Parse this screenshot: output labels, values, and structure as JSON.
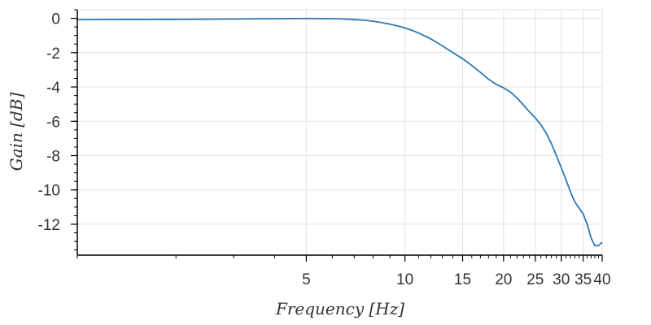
{
  "chart_data": {
    "type": "line",
    "title": "",
    "xlabel": "Frequency [Hz]",
    "ylabel": "Gain [dB]",
    "x_scale": "log",
    "xlim": [
      1,
      40
    ],
    "ylim": [
      -13.8,
      0.5
    ],
    "grid": true,
    "legend": "none",
    "x_ticks": [
      5,
      10,
      15,
      20,
      25,
      30,
      35,
      40
    ],
    "x_tick_labels": [
      "5",
      "10",
      "15",
      "20",
      "25",
      "30",
      "35",
      "40"
    ],
    "y_ticks": [
      0,
      -2,
      -4,
      -6,
      -8,
      -10,
      -12
    ],
    "y_tick_labels": [
      "0",
      "-2",
      "-4",
      "-6",
      "-8",
      "-10",
      "-12"
    ],
    "series": [
      {
        "color": "#2e78b4",
        "x": [
          1,
          2,
          3,
          4,
          5,
          6,
          6.5,
          7,
          7.5,
          8,
          8.5,
          9,
          9.5,
          10,
          10.5,
          11,
          12,
          13,
          14,
          15,
          16,
          17,
          18,
          19,
          20,
          21,
          22,
          23,
          24,
          25,
          26,
          27,
          28,
          29,
          30,
          31,
          32,
          33,
          34,
          35,
          36,
          37,
          38,
          39,
          40
        ],
        "y": [
          -0.08,
          -0.06,
          -0.04,
          -0.02,
          -0.01,
          -0.02,
          -0.04,
          -0.07,
          -0.11,
          -0.17,
          -0.25,
          -0.34,
          -0.44,
          -0.56,
          -0.7,
          -0.85,
          -1.2,
          -1.6,
          -2.0,
          -2.35,
          -2.75,
          -3.15,
          -3.55,
          -3.85,
          -4.05,
          -4.3,
          -4.65,
          -5.05,
          -5.45,
          -5.8,
          -6.2,
          -6.7,
          -7.3,
          -8.0,
          -8.7,
          -9.4,
          -10.1,
          -10.7,
          -11.05,
          -11.4,
          -12.0,
          -12.8,
          -13.25,
          -13.25,
          -13.05
        ]
      }
    ]
  }
}
